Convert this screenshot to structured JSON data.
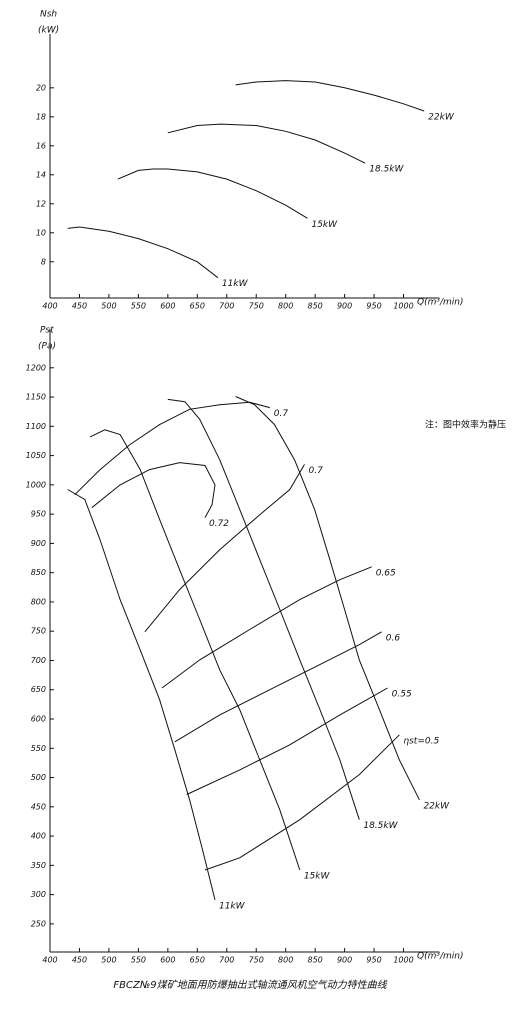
{
  "note": "注：图中效率为静压",
  "caption": "FBCZ№9煤矿地面用防爆抽出式轴流通风机空气动力特性曲线",
  "chart_data": [
    {
      "type": "line",
      "ylabel": "Nsh",
      "yunit": "(kW)",
      "xlabel": "Q(m³/min)",
      "xlim": [
        400,
        1050
      ],
      "ylim": [
        5.5,
        23.3
      ],
      "xticks": [
        400,
        450,
        500,
        550,
        600,
        650,
        700,
        750,
        800,
        850,
        900,
        950,
        1000
      ],
      "yticks": [
        8,
        10,
        12,
        14,
        16,
        18,
        20
      ],
      "series": [
        {
          "name": "11kW",
          "color": "#000000",
          "x": [
            430,
            450,
            500,
            550,
            600,
            650,
            685
          ],
          "values": [
            10.3,
            10.4,
            10.1,
            9.6,
            8.9,
            8.0,
            6.9
          ]
        },
        {
          "name": "15kW",
          "color": "#000000",
          "x": [
            515,
            550,
            575,
            600,
            650,
            700,
            750,
            800,
            837
          ],
          "values": [
            13.7,
            14.3,
            14.4,
            14.4,
            14.2,
            13.7,
            12.9,
            11.9,
            11.0
          ]
        },
        {
          "name": "18.5kW",
          "color": "#000000",
          "x": [
            600,
            650,
            690,
            750,
            800,
            850,
            900,
            935
          ],
          "values": [
            16.9,
            17.4,
            17.5,
            17.4,
            17.0,
            16.4,
            15.5,
            14.8
          ]
        },
        {
          "name": "22kW",
          "color": "#000000",
          "x": [
            715,
            750,
            800,
            850,
            900,
            950,
            1000,
            1035
          ],
          "values": [
            20.2,
            20.4,
            20.5,
            20.4,
            20.0,
            19.5,
            18.9,
            18.4
          ]
        }
      ]
    },
    {
      "type": "line",
      "ylabel": "Pst",
      "yunit": "(Pa)",
      "xlabel": "Q(m³/min)",
      "xlim": [
        400,
        1050
      ],
      "ylim": [
        202,
        1256
      ],
      "xticks": [
        400,
        450,
        500,
        550,
        600,
        650,
        700,
        750,
        800,
        850,
        900,
        950,
        1000
      ],
      "yticks": [
        250,
        300,
        350,
        400,
        450,
        500,
        550,
        600,
        650,
        700,
        750,
        800,
        850,
        900,
        950,
        1000,
        1050,
        1100,
        1150,
        1200
      ],
      "series": [
        {
          "name": "11kW",
          "color": "#000000",
          "x": [
            430,
            459,
            485,
            519,
            553,
            586,
            612,
            637,
            659,
            680
          ],
          "values": [
            992,
            975,
            906,
            804,
            718,
            633,
            547,
            462,
            376,
            291
          ]
        },
        {
          "name": "15kW",
          "color": "#000000",
          "x": [
            468,
            493,
            519,
            553,
            586,
            620,
            654,
            688,
            722,
            756,
            790,
            824
          ],
          "values": [
            1082,
            1094,
            1086,
            1026,
            941,
            855,
            770,
            684,
            616,
            530,
            445,
            342
          ]
        },
        {
          "name": "18.5kW",
          "color": "#000000",
          "x": [
            600,
            629,
            654,
            688,
            722,
            756,
            790,
            824,
            858,
            892,
            925
          ],
          "values": [
            1146,
            1142,
            1112,
            1043,
            958,
            872,
            787,
            701,
            616,
            530,
            428
          ]
        },
        {
          "name": "22kW",
          "color": "#000000",
          "x": [
            715,
            747,
            781,
            815,
            849,
            875,
            900,
            925,
            959,
            993,
            1027
          ],
          "values": [
            1151,
            1137,
            1103,
            1043,
            958,
            872,
            787,
            701,
            616,
            530,
            462
          ]
        }
      ],
      "efficiency": [
        {
          "name": "0.7",
          "color": "#000000",
          "x": [
            442,
            485,
            536,
            586,
            637,
            688,
            739,
            773
          ],
          "values": [
            983,
            1026,
            1069,
            1103,
            1129,
            1137,
            1141,
            1132
          ]
        },
        {
          "name": "0.72",
          "color": "#000000",
          "x": [
            471,
            519,
            569,
            620,
            663,
            680,
            675,
            663
          ],
          "values": [
            961,
            1000,
            1026,
            1038,
            1033,
            1000,
            966,
            944
          ]
        },
        {
          "name": "0.7",
          "color": "#000000",
          "x": [
            561,
            620,
            688,
            756,
            807,
            832
          ],
          "values": [
            749,
            821,
            889,
            949,
            992,
            1035
          ]
        },
        {
          "name": "0.65",
          "color": "#000000",
          "x": [
            590,
            654,
            739,
            824,
            892,
            946
          ],
          "values": [
            653,
            701,
            753,
            804,
            838,
            860
          ]
        },
        {
          "name": "0.6",
          "color": "#000000",
          "x": [
            612,
            688,
            773,
            858,
            925,
            963
          ],
          "values": [
            561,
            607,
            650,
            693,
            727,
            749
          ]
        },
        {
          "name": "0.55",
          "color": "#000000",
          "x": [
            632,
            722,
            807,
            892,
            973
          ],
          "values": [
            471,
            513,
            556,
            607,
            653
          ]
        },
        {
          "name": "ηst=0.5",
          "color": "#000000",
          "x": [
            663,
            722,
            824,
            925,
            993
          ],
          "values": [
            342,
            363,
            428,
            505,
            573
          ]
        }
      ]
    }
  ]
}
